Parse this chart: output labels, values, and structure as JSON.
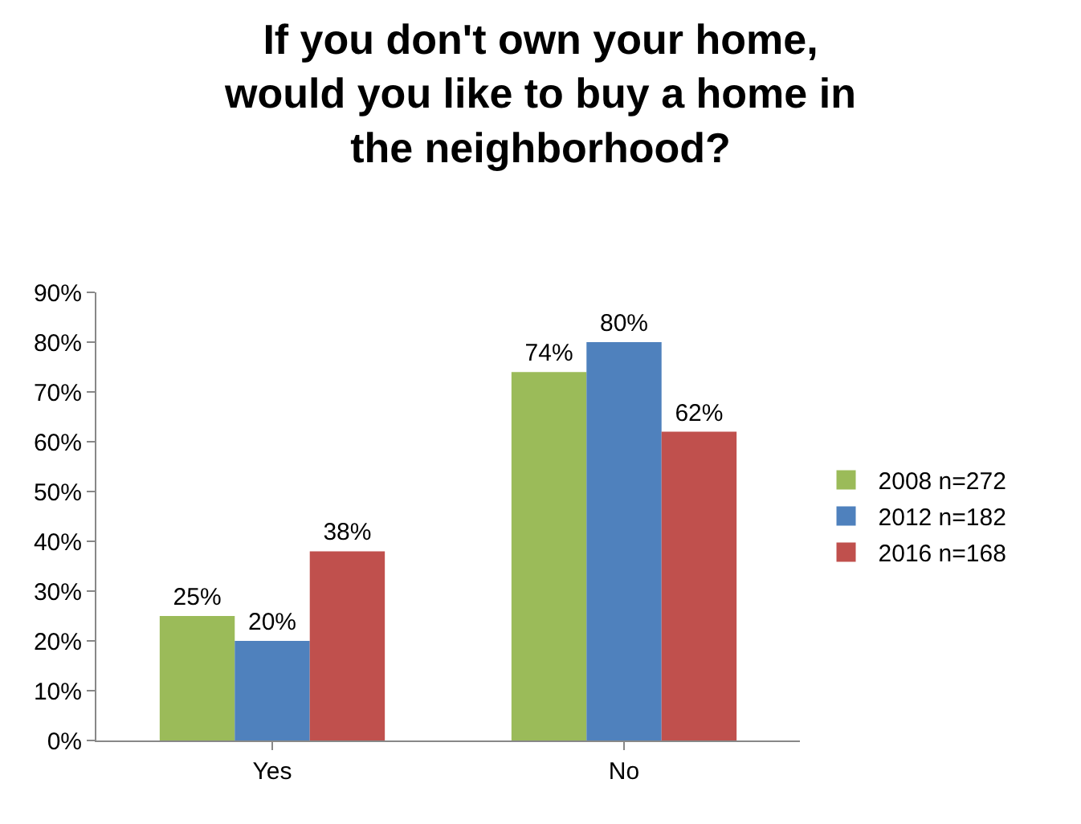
{
  "chart_data": {
    "type": "bar",
    "title": "If you don't own your home,\nwould you like to buy a home in\nthe neighborhood?",
    "categories": [
      "Yes",
      "No"
    ],
    "series": [
      {
        "name": "2008 n=272",
        "color": "#9bbb59",
        "values": [
          25,
          74
        ],
        "value_labels": [
          "25%",
          "74%"
        ]
      },
      {
        "name": "2012 n=182",
        "color": "#4f81bd",
        "values": [
          20,
          80
        ],
        "value_labels": [
          "20%",
          "80%"
        ]
      },
      {
        "name": "2016 n=168",
        "color": "#c0504d",
        "values": [
          38,
          62
        ],
        "value_labels": [
          "38%",
          "62%"
        ]
      }
    ],
    "ylim": [
      0,
      90
    ],
    "yticks": [
      {
        "value": 0,
        "label": "0%"
      },
      {
        "value": 10,
        "label": "10%"
      },
      {
        "value": 20,
        "label": "20%"
      },
      {
        "value": 30,
        "label": "30%"
      },
      {
        "value": 40,
        "label": "40%"
      },
      {
        "value": 50,
        "label": "50%"
      },
      {
        "value": 60,
        "label": "60%"
      },
      {
        "value": 70,
        "label": "70%"
      },
      {
        "value": 80,
        "label": "80%"
      },
      {
        "value": 90,
        "label": "90%"
      }
    ],
    "grid": false,
    "legend": "right"
  }
}
